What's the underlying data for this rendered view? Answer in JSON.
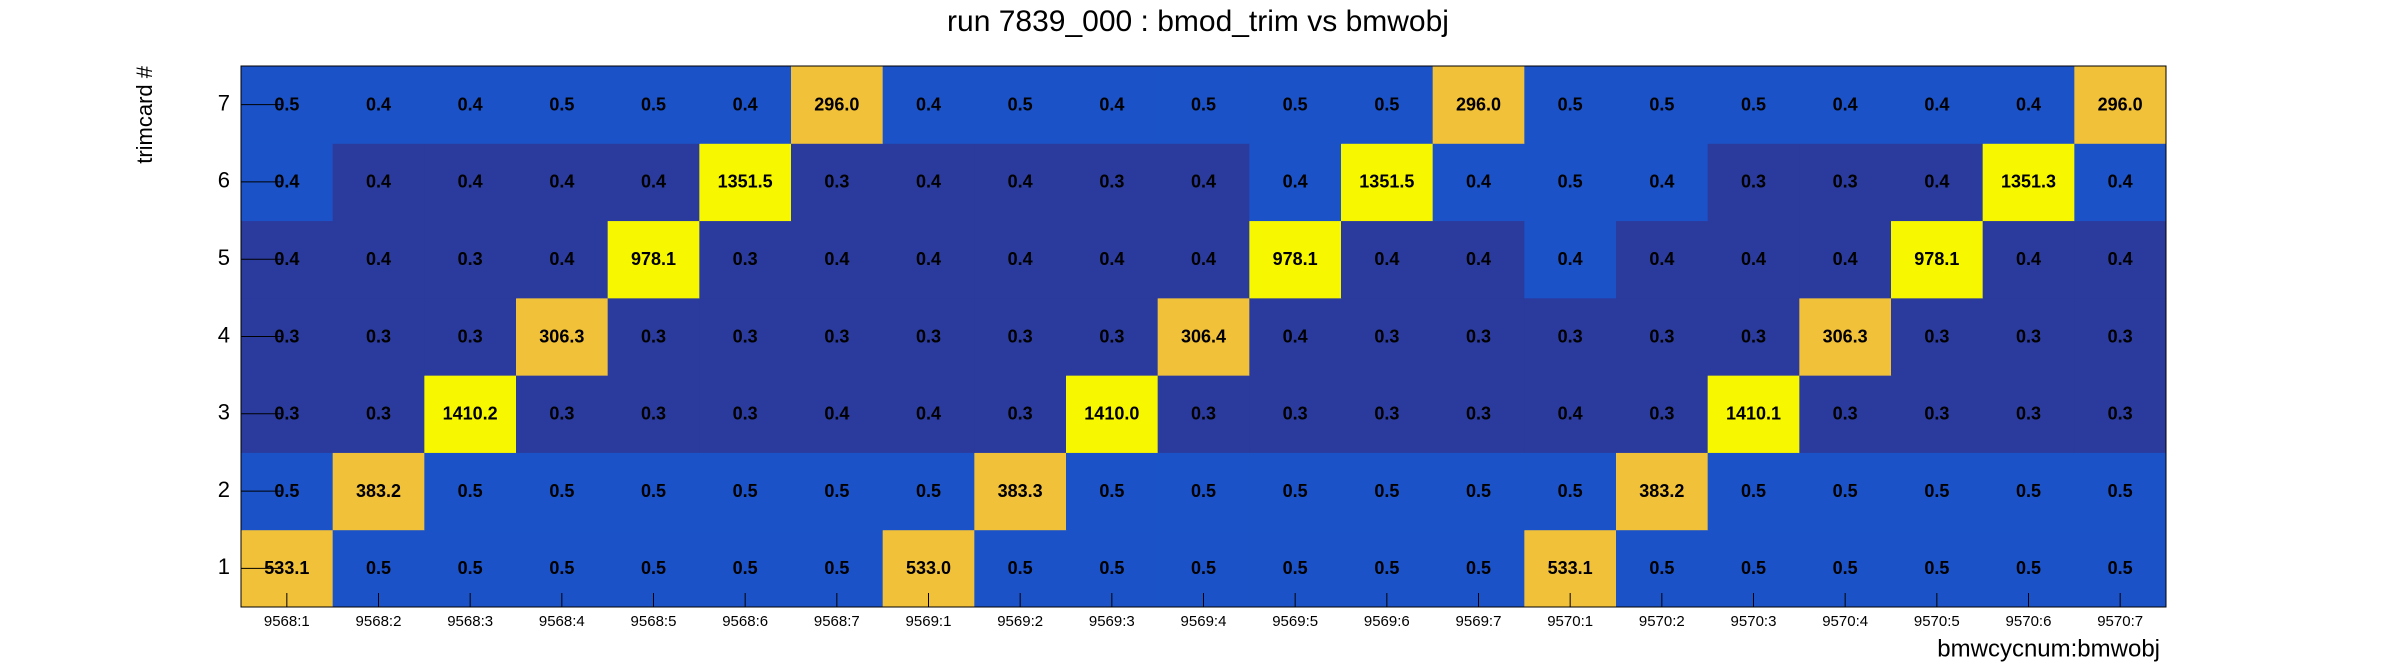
{
  "chart_data": {
    "type": "heatmap",
    "title": "run 7839_000 : bmod_trim vs bmwobj",
    "x_label": "bmwcycnum:bmwobj",
    "y_label": "trimcard #",
    "categories": [
      "9568:1",
      "9568:2",
      "9568:3",
      "9568:4",
      "9568:5",
      "9568:6",
      "9568:7",
      "9569:1",
      "9569:2",
      "9569:3",
      "9569:4",
      "9569:5",
      "9569:6",
      "9569:7",
      "9570:1",
      "9570:2",
      "9570:3",
      "9570:4",
      "9570:5",
      "9570:6",
      "9570:7"
    ],
    "y_categories": [
      1,
      2,
      3,
      4,
      5,
      6,
      7
    ],
    "values": [
      [
        533.1,
        0.5,
        0.5,
        0.5,
        0.5,
        0.5,
        0.5,
        533.0,
        0.5,
        0.5,
        0.5,
        0.5,
        0.5,
        0.5,
        533.1,
        0.5,
        0.5,
        0.5,
        0.5,
        0.5,
        0.5
      ],
      [
        0.5,
        383.2,
        0.5,
        0.5,
        0.5,
        0.5,
        0.5,
        0.5,
        383.3,
        0.5,
        0.5,
        0.5,
        0.5,
        0.5,
        0.5,
        383.2,
        0.5,
        0.5,
        0.5,
        0.5,
        0.5
      ],
      [
        0.3,
        0.3,
        1410.2,
        0.3,
        0.3,
        0.3,
        0.4,
        0.4,
        0.3,
        1410.0,
        0.3,
        0.3,
        0.3,
        0.3,
        0.4,
        0.3,
        1410.1,
        0.3,
        0.3,
        0.3,
        0.3
      ],
      [
        0.3,
        0.3,
        0.3,
        306.3,
        0.3,
        0.3,
        0.3,
        0.3,
        0.3,
        0.3,
        306.4,
        0.4,
        0.3,
        0.3,
        0.3,
        0.3,
        0.3,
        306.3,
        0.3,
        0.3,
        0.3
      ],
      [
        0.4,
        0.4,
        0.3,
        0.4,
        978.1,
        0.3,
        0.4,
        0.4,
        0.4,
        0.4,
        0.4,
        978.1,
        0.4,
        0.4,
        0.4,
        0.4,
        0.4,
        0.4,
        978.1,
        0.4,
        0.4
      ],
      [
        0.4,
        0.4,
        0.4,
        0.4,
        0.4,
        1351.5,
        0.3,
        0.4,
        0.4,
        0.3,
        0.4,
        0.4,
        1351.5,
        0.4,
        0.5,
        0.4,
        0.3,
        0.3,
        0.4,
        1351.3,
        0.4
      ],
      [
        0.5,
        0.4,
        0.4,
        0.5,
        0.5,
        0.4,
        296.0,
        0.4,
        0.5,
        0.4,
        0.5,
        0.5,
        0.5,
        296.0,
        0.5,
        0.5,
        0.5,
        0.4,
        0.4,
        0.4,
        296.0
      ]
    ],
    "value_labels": [
      [
        "533.1",
        "0.5",
        "0.5",
        "0.5",
        "0.5",
        "0.5",
        "0.5",
        "533.0",
        "0.5",
        "0.5",
        "0.5",
        "0.5",
        "0.5",
        "0.5",
        "533.1",
        "0.5",
        "0.5",
        "0.5",
        "0.5",
        "0.5",
        "0.5"
      ],
      [
        "0.5",
        "383.2",
        "0.5",
        "0.5",
        "0.5",
        "0.5",
        "0.5",
        "0.5",
        "383.3",
        "0.5",
        "0.5",
        "0.5",
        "0.5",
        "0.5",
        "0.5",
        "383.2",
        "0.5",
        "0.5",
        "0.5",
        "0.5",
        "0.5"
      ],
      [
        "0.3",
        "0.3",
        "1410.2",
        "0.3",
        "0.3",
        "0.3",
        "0.4",
        "0.4",
        "0.3",
        "1410.0",
        "0.3",
        "0.3",
        "0.3",
        "0.3",
        "0.4",
        "0.3",
        "1410.1",
        "0.3",
        "0.3",
        "0.3",
        "0.3"
      ],
      [
        "0.3",
        "0.3",
        "0.3",
        "306.3",
        "0.3",
        "0.3",
        "0.3",
        "0.3",
        "0.3",
        "0.3",
        "306.4",
        "0.4",
        "0.3",
        "0.3",
        "0.3",
        "0.3",
        "0.3",
        "306.3",
        "0.3",
        "0.3",
        "0.3"
      ],
      [
        "0.4",
        "0.4",
        "0.3",
        "0.4",
        "978.1",
        "0.3",
        "0.4",
        "0.4",
        "0.4",
        "0.4",
        "0.4",
        "978.1",
        "0.4",
        "0.4",
        "0.4",
        "0.4",
        "0.4",
        "0.4",
        "978.1",
        "0.4",
        "0.4"
      ],
      [
        "0.4",
        "0.4",
        "0.4",
        "0.4",
        "0.4",
        "1351.5",
        "0.3",
        "0.4",
        "0.4",
        "0.3",
        "0.4",
        "0.4",
        "1351.5",
        "0.4",
        "0.5",
        "0.4",
        "0.3",
        "0.3",
        "0.4",
        "1351.3",
        "0.4"
      ],
      [
        "0.5",
        "0.4",
        "0.4",
        "0.5",
        "0.5",
        "0.4",
        "296.0",
        "0.4",
        "0.5",
        "0.4",
        "0.5",
        "0.5",
        "0.5",
        "296.0",
        "0.5",
        "0.5",
        "0.5",
        "0.4",
        "0.4",
        "0.4",
        "296.0"
      ]
    ],
    "colors": [
      [
        "#f2c13a",
        "#1b52c7",
        "#1b52c7",
        "#1b52c7",
        "#1b52c7",
        "#1b52c7",
        "#1b52c7",
        "#f2c13a",
        "#1b52c7",
        "#1b52c7",
        "#1b52c7",
        "#1b52c7",
        "#1b52c7",
        "#1b52c7",
        "#f2c13a",
        "#1b52c7",
        "#1b52c7",
        "#1b52c7",
        "#1b52c7",
        "#1b52c7",
        "#1b52c7"
      ],
      [
        "#1b52c7",
        "#f2c13a",
        "#1b52c7",
        "#1b52c7",
        "#1b52c7",
        "#1b52c7",
        "#1b52c7",
        "#1b52c7",
        "#f2c13a",
        "#1b52c7",
        "#1b52c7",
        "#1b52c7",
        "#1b52c7",
        "#1b52c7",
        "#1b52c7",
        "#f2c13a",
        "#1b52c7",
        "#1b52c7",
        "#1b52c7",
        "#1b52c7",
        "#1b52c7"
      ],
      [
        "#2b3b9d",
        "#2b3b9d",
        "#f7f700",
        "#2b3b9d",
        "#2b3b9d",
        "#2b3b9d",
        "#2b3b9d",
        "#2b3b9d",
        "#2b3b9d",
        "#f7f700",
        "#2b3b9d",
        "#2b3b9d",
        "#2b3b9d",
        "#2b3b9d",
        "#2b3b9d",
        "#2b3b9d",
        "#f7f700",
        "#2b3b9d",
        "#2b3b9d",
        "#2b3b9d",
        "#2b3b9d"
      ],
      [
        "#2b3b9d",
        "#2b3b9d",
        "#2b3b9d",
        "#f2c13a",
        "#2b3b9d",
        "#2b3b9d",
        "#2b3b9d",
        "#2b3b9d",
        "#2b3b9d",
        "#2b3b9d",
        "#f2c13a",
        "#2b3b9d",
        "#2b3b9d",
        "#2b3b9d",
        "#2b3b9d",
        "#2b3b9d",
        "#2b3b9d",
        "#f2c13a",
        "#2b3b9d",
        "#2b3b9d",
        "#2b3b9d"
      ],
      [
        "#2b3b9d",
        "#2b3b9d",
        "#2b3b9d",
        "#2b3b9d",
        "#f7f700",
        "#2b3b9d",
        "#2b3b9d",
        "#2b3b9d",
        "#2b3b9d",
        "#2b3b9d",
        "#2b3b9d",
        "#f7f700",
        "#2b3b9d",
        "#2b3b9d",
        "#1b52c7",
        "#2b3b9d",
        "#2b3b9d",
        "#2b3b9d",
        "#f7f700",
        "#2b3b9d",
        "#2b3b9d"
      ],
      [
        "#1b52c7",
        "#2b3b9d",
        "#2b3b9d",
        "#2b3b9d",
        "#2b3b9d",
        "#f7f700",
        "#2b3b9d",
        "#2b3b9d",
        "#2b3b9d",
        "#2b3b9d",
        "#2b3b9d",
        "#1b52c7",
        "#f7f700",
        "#1b52c7",
        "#1b52c7",
        "#1b52c7",
        "#2b3b9d",
        "#2b3b9d",
        "#2b3b9d",
        "#f7f700",
        "#1b52c7"
      ],
      [
        "#1b52c7",
        "#1b52c7",
        "#1b52c7",
        "#1b52c7",
        "#1b52c7",
        "#1b52c7",
        "#f2c13a",
        "#1b52c7",
        "#1b52c7",
        "#1b52c7",
        "#1b52c7",
        "#1b52c7",
        "#1b52c7",
        "#f2c13a",
        "#1b52c7",
        "#1b52c7",
        "#1b52c7",
        "#1b52c7",
        "#1b52c7",
        "#1b52c7",
        "#f2c13a"
      ]
    ]
  }
}
